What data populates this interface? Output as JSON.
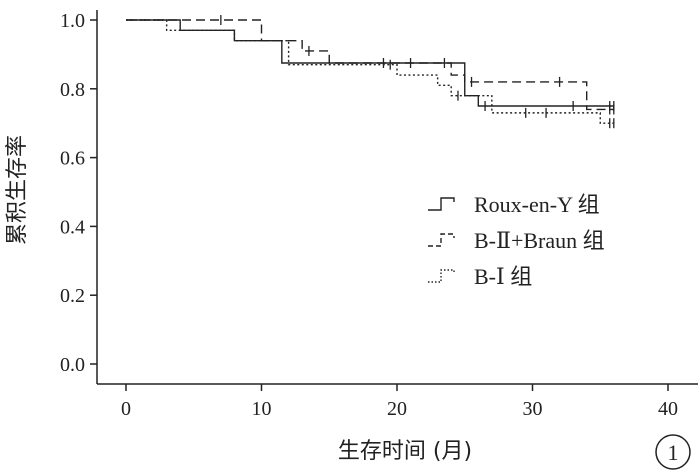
{
  "chart_data": {
    "type": "line",
    "step": true,
    "xlabel": "生存时间 (月)",
    "ylabel": "累积生存率",
    "xlim": [
      0,
      40
    ],
    "ylim": [
      0,
      1.0
    ],
    "xticks": [
      0,
      10,
      20,
      30,
      40
    ],
    "yticks": [
      0.0,
      0.2,
      0.4,
      0.6,
      0.8,
      1.0
    ],
    "x_tick_labels": [
      "0",
      "10",
      "20",
      "30",
      "40"
    ],
    "y_tick_labels": [
      "0.0",
      "0.2",
      "0.4",
      "0.6",
      "0.8",
      "1.0"
    ],
    "grid": false,
    "legend_position": "right",
    "panel_label": "1",
    "series": [
      {
        "name": "Roux-en-Y 组",
        "dash": "solid",
        "x": [
          0,
          4,
          8,
          11.5,
          16,
          25,
          26,
          36
        ],
        "y": [
          1.0,
          0.97,
          0.94,
          0.875,
          0.875,
          0.78,
          0.75,
          0.75
        ],
        "end": 36,
        "censored": [
          [
            23.5,
            0.875
          ],
          [
            26.5,
            0.75
          ],
          [
            33,
            0.75
          ],
          [
            35.7,
            0.75
          ],
          [
            36,
            0.75
          ]
        ]
      },
      {
        "name": "B-Ⅱ+Braun 组",
        "dash": "dashed",
        "x": [
          0,
          6,
          10,
          13,
          15,
          24,
          25,
          34
        ],
        "y": [
          1.0,
          1.0,
          0.94,
          0.91,
          0.875,
          0.84,
          0.82,
          0.74
        ],
        "end": 36,
        "censored": [
          [
            7,
            1.0
          ],
          [
            13.5,
            0.91
          ],
          [
            19,
            0.875
          ],
          [
            21,
            0.875
          ],
          [
            25.5,
            0.82
          ],
          [
            32,
            0.82
          ],
          [
            35.7,
            0.74
          ],
          [
            36,
            0.74
          ]
        ]
      },
      {
        "name": "B-Ⅰ 组",
        "dash": "dotted",
        "x": [
          0,
          3,
          8,
          12,
          13,
          20,
          23,
          24,
          27,
          35
        ],
        "y": [
          1.0,
          0.97,
          0.94,
          0.87,
          0.87,
          0.84,
          0.81,
          0.78,
          0.73,
          0.7
        ],
        "end": 36,
        "censored": [
          [
            19.5,
            0.87
          ],
          [
            24.5,
            0.78
          ],
          [
            29.5,
            0.73
          ],
          [
            31,
            0.73
          ],
          [
            35.7,
            0.7
          ],
          [
            36,
            0.7
          ]
        ]
      }
    ]
  }
}
